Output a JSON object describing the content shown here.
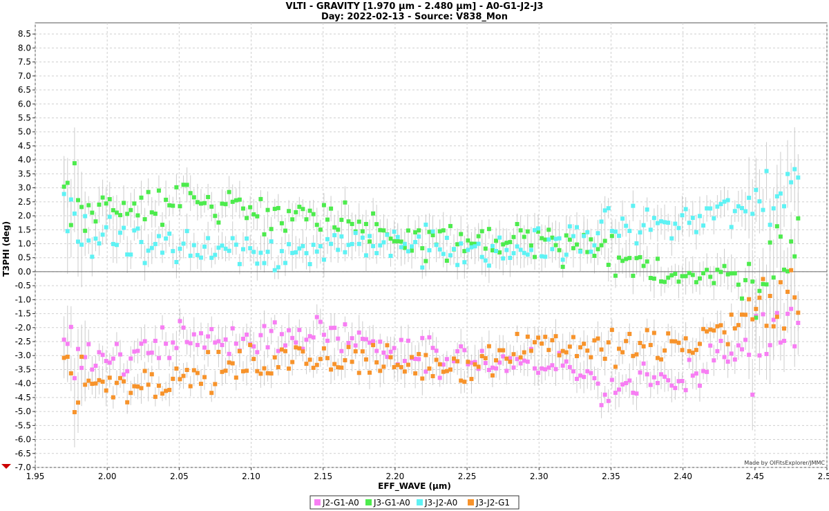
{
  "chart_data": {
    "type": "scatter",
    "title": "VLTI - GRAVITY [1.970 µm - 2.480 µm] - A0-G1-J2-J3",
    "subtitle": "Day: 2022-02-13 - Source: V838_Mon",
    "xlabel": "EFF_WAVE (µm)",
    "ylabel": "T3PHI (deg)",
    "xlim": [
      1.95,
      2.5
    ],
    "ylim": [
      -7.0,
      8.9
    ],
    "x_ticks": [
      "1.95",
      "2.00",
      "2.05",
      "2.10",
      "2.15",
      "2.20",
      "2.25",
      "2.30",
      "2.35",
      "2.40",
      "2.45",
      "2.50"
    ],
    "y_ticks": [
      "-7.0",
      "-6.5",
      "-6.0",
      "-5.5",
      "-5.0",
      "-4.5",
      "-4.0",
      "-3.5",
      "-3.0",
      "-2.5",
      "-2.0",
      "-1.5",
      "-1.0",
      "-0.5",
      "0.0",
      "0.5",
      "1.0",
      "1.5",
      "2.0",
      "2.5",
      "3.0",
      "3.5",
      "4.0",
      "4.5",
      "5.0",
      "5.5",
      "6.0",
      "6.5",
      "7.0",
      "7.5",
      "8.0",
      "8.5"
    ],
    "grid": true,
    "zero_line": true,
    "legend_position": "bottom-center",
    "x_sampling": {
      "start": 1.97,
      "end": 2.48,
      "count": 210
    },
    "series": [
      {
        "name": "J2-G1-A0",
        "color": "#f77ef3",
        "trend": [
          [
            1.97,
            -3.3
          ],
          [
            2.0,
            -3.2
          ],
          [
            2.05,
            -2.3
          ],
          [
            2.1,
            -2.4
          ],
          [
            2.15,
            -2.2
          ],
          [
            2.2,
            -2.7
          ],
          [
            2.25,
            -3.2
          ],
          [
            2.3,
            -3.3
          ],
          [
            2.35,
            -4.2
          ],
          [
            2.4,
            -3.7
          ],
          [
            2.45,
            -2.6
          ],
          [
            2.48,
            -1.7
          ]
        ],
        "spread": 0.45,
        "error": 0.45
      },
      {
        "name": "J3-G1-A0",
        "color": "#4deb4d",
        "trend": [
          [
            1.97,
            3.5
          ],
          [
            1.99,
            2.2
          ],
          [
            2.05,
            2.7
          ],
          [
            2.1,
            2.2
          ],
          [
            2.15,
            1.8
          ],
          [
            2.2,
            1.3
          ],
          [
            2.25,
            1.0
          ],
          [
            2.3,
            1.1
          ],
          [
            2.35,
            0.5
          ],
          [
            2.4,
            -0.1
          ],
          [
            2.45,
            -0.2
          ],
          [
            2.48,
            1.5
          ]
        ],
        "spread": 0.45,
        "error": 0.5
      },
      {
        "name": "J3-J2-A0",
        "color": "#5ef2f4",
        "trend": [
          [
            1.97,
            1.5
          ],
          [
            2.0,
            1.3
          ],
          [
            2.05,
            0.8
          ],
          [
            2.1,
            0.9
          ],
          [
            2.15,
            0.6
          ],
          [
            2.2,
            1.2
          ],
          [
            2.25,
            0.5
          ],
          [
            2.3,
            0.9
          ],
          [
            2.35,
            1.5
          ],
          [
            2.4,
            1.8
          ],
          [
            2.45,
            2.3
          ],
          [
            2.48,
            3.5
          ]
        ],
        "spread": 0.5,
        "error": 0.5
      },
      {
        "name": "J3-J2-G1",
        "color": "#f7932b",
        "trend": [
          [
            1.97,
            -3.8
          ],
          [
            2.0,
            -4.0
          ],
          [
            2.05,
            -3.9
          ],
          [
            2.1,
            -3.3
          ],
          [
            2.15,
            -3.1
          ],
          [
            2.2,
            -3.3
          ],
          [
            2.25,
            -3.3
          ],
          [
            2.3,
            -2.5
          ],
          [
            2.35,
            -2.8
          ],
          [
            2.4,
            -2.7
          ],
          [
            2.45,
            -1.5
          ],
          [
            2.48,
            -1.0
          ]
        ],
        "spread": 0.45,
        "error": 0.45
      }
    ],
    "credit": "Made by OIFitsExplorer/JMMC"
  }
}
